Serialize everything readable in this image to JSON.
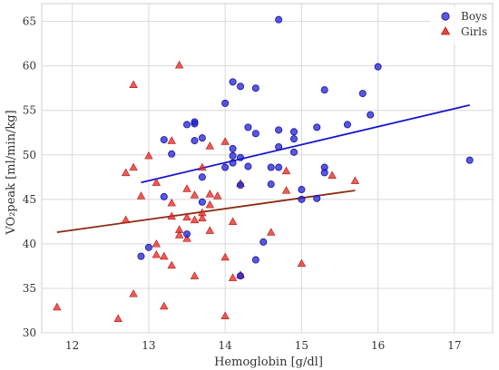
{
  "chart_data": {
    "type": "scatter",
    "xlabel": "Hemoglobin [g/dl]",
    "ylabel": "VO₂peak [ml/min/kg]",
    "xlim": [
      11.6,
      17.5
    ],
    "ylim": [
      30,
      67
    ],
    "xticks": [
      "12",
      "13",
      "14",
      "15",
      "16",
      "17"
    ],
    "xtick_values": [
      12,
      13,
      14,
      15,
      16,
      17
    ],
    "yticks": [
      "30",
      "35",
      "40",
      "45",
      "50",
      "55",
      "60",
      "65"
    ],
    "ytick_values": [
      30,
      35,
      40,
      45,
      50,
      55,
      60,
      65
    ],
    "grid": true,
    "legend_position": "top-right",
    "series": [
      {
        "name": "Boys",
        "marker": "circle",
        "color": "#1f1fd6",
        "points": [
          [
            12.9,
            38.6
          ],
          [
            13.0,
            39.6
          ],
          [
            13.2,
            45.3
          ],
          [
            13.2,
            51.7
          ],
          [
            13.3,
            50.1
          ],
          [
            13.5,
            53.4
          ],
          [
            13.5,
            41.1
          ],
          [
            13.6,
            53.7
          ],
          [
            13.6,
            53.5
          ],
          [
            13.6,
            51.6
          ],
          [
            13.7,
            51.9
          ],
          [
            13.7,
            44.7
          ],
          [
            13.7,
            47.5
          ],
          [
            14.0,
            55.8
          ],
          [
            14.0,
            48.6
          ],
          [
            14.1,
            58.2
          ],
          [
            14.1,
            50.7
          ],
          [
            14.1,
            49.9
          ],
          [
            14.1,
            49.1
          ],
          [
            14.2,
            57.7
          ],
          [
            14.2,
            49.7
          ],
          [
            14.2,
            46.6
          ],
          [
            14.2,
            36.4
          ],
          [
            14.3,
            53.1
          ],
          [
            14.3,
            48.7
          ],
          [
            14.4,
            57.5
          ],
          [
            14.4,
            52.4
          ],
          [
            14.4,
            38.2
          ],
          [
            14.5,
            40.2
          ],
          [
            14.6,
            48.6
          ],
          [
            14.6,
            46.7
          ],
          [
            14.7,
            65.2
          ],
          [
            14.7,
            52.8
          ],
          [
            14.7,
            50.9
          ],
          [
            14.7,
            48.6
          ],
          [
            14.9,
            52.6
          ],
          [
            14.9,
            51.8
          ],
          [
            14.9,
            50.3
          ],
          [
            15.0,
            46.1
          ],
          [
            15.0,
            45.0
          ],
          [
            15.2,
            53.1
          ],
          [
            15.2,
            45.1
          ],
          [
            15.3,
            57.3
          ],
          [
            15.3,
            48.6
          ],
          [
            15.3,
            48.0
          ],
          [
            15.6,
            53.4
          ],
          [
            15.8,
            56.9
          ],
          [
            15.9,
            54.5
          ],
          [
            16.0,
            59.9
          ],
          [
            17.2,
            49.4
          ]
        ],
        "trend": [
          [
            12.9,
            46.9
          ],
          [
            17.2,
            55.6
          ]
        ],
        "trend_color": "#1515d0"
      },
      {
        "name": "Girls",
        "marker": "triangle",
        "color": "#e8231e",
        "points": [
          [
            11.8,
            32.9
          ],
          [
            12.6,
            31.6
          ],
          [
            12.7,
            48.0
          ],
          [
            12.7,
            42.7
          ],
          [
            12.8,
            57.9
          ],
          [
            12.8,
            48.6
          ],
          [
            12.8,
            34.4
          ],
          [
            12.9,
            45.4
          ],
          [
            13.0,
            49.9
          ],
          [
            13.1,
            46.9
          ],
          [
            13.1,
            40.0
          ],
          [
            13.1,
            38.8
          ],
          [
            13.2,
            38.6
          ],
          [
            13.2,
            33.0
          ],
          [
            13.3,
            51.6
          ],
          [
            13.3,
            44.6
          ],
          [
            13.3,
            43.1
          ],
          [
            13.3,
            37.6
          ],
          [
            13.4,
            60.1
          ],
          [
            13.4,
            41.6
          ],
          [
            13.4,
            41.0
          ],
          [
            13.5,
            46.2
          ],
          [
            13.5,
            43.0
          ],
          [
            13.5,
            40.6
          ],
          [
            13.6,
            45.5
          ],
          [
            13.6,
            42.7
          ],
          [
            13.6,
            36.4
          ],
          [
            13.7,
            48.6
          ],
          [
            13.7,
            43.5
          ],
          [
            13.7,
            42.9
          ],
          [
            13.8,
            51.0
          ],
          [
            13.8,
            45.6
          ],
          [
            13.8,
            44.4
          ],
          [
            13.8,
            41.5
          ],
          [
            13.9,
            45.4
          ],
          [
            14.0,
            51.5
          ],
          [
            14.0,
            38.5
          ],
          [
            14.0,
            31.9
          ],
          [
            14.1,
            42.5
          ],
          [
            14.1,
            36.2
          ],
          [
            14.2,
            46.8
          ],
          [
            14.2,
            36.5
          ],
          [
            14.6,
            41.3
          ],
          [
            14.8,
            48.2
          ],
          [
            14.8,
            46.0
          ],
          [
            15.0,
            37.8
          ],
          [
            15.4,
            47.7
          ],
          [
            15.7,
            47.1
          ]
        ],
        "trend": [
          [
            11.8,
            41.3
          ],
          [
            15.7,
            46.0
          ]
        ],
        "trend_color": "#8b2c12"
      }
    ]
  }
}
